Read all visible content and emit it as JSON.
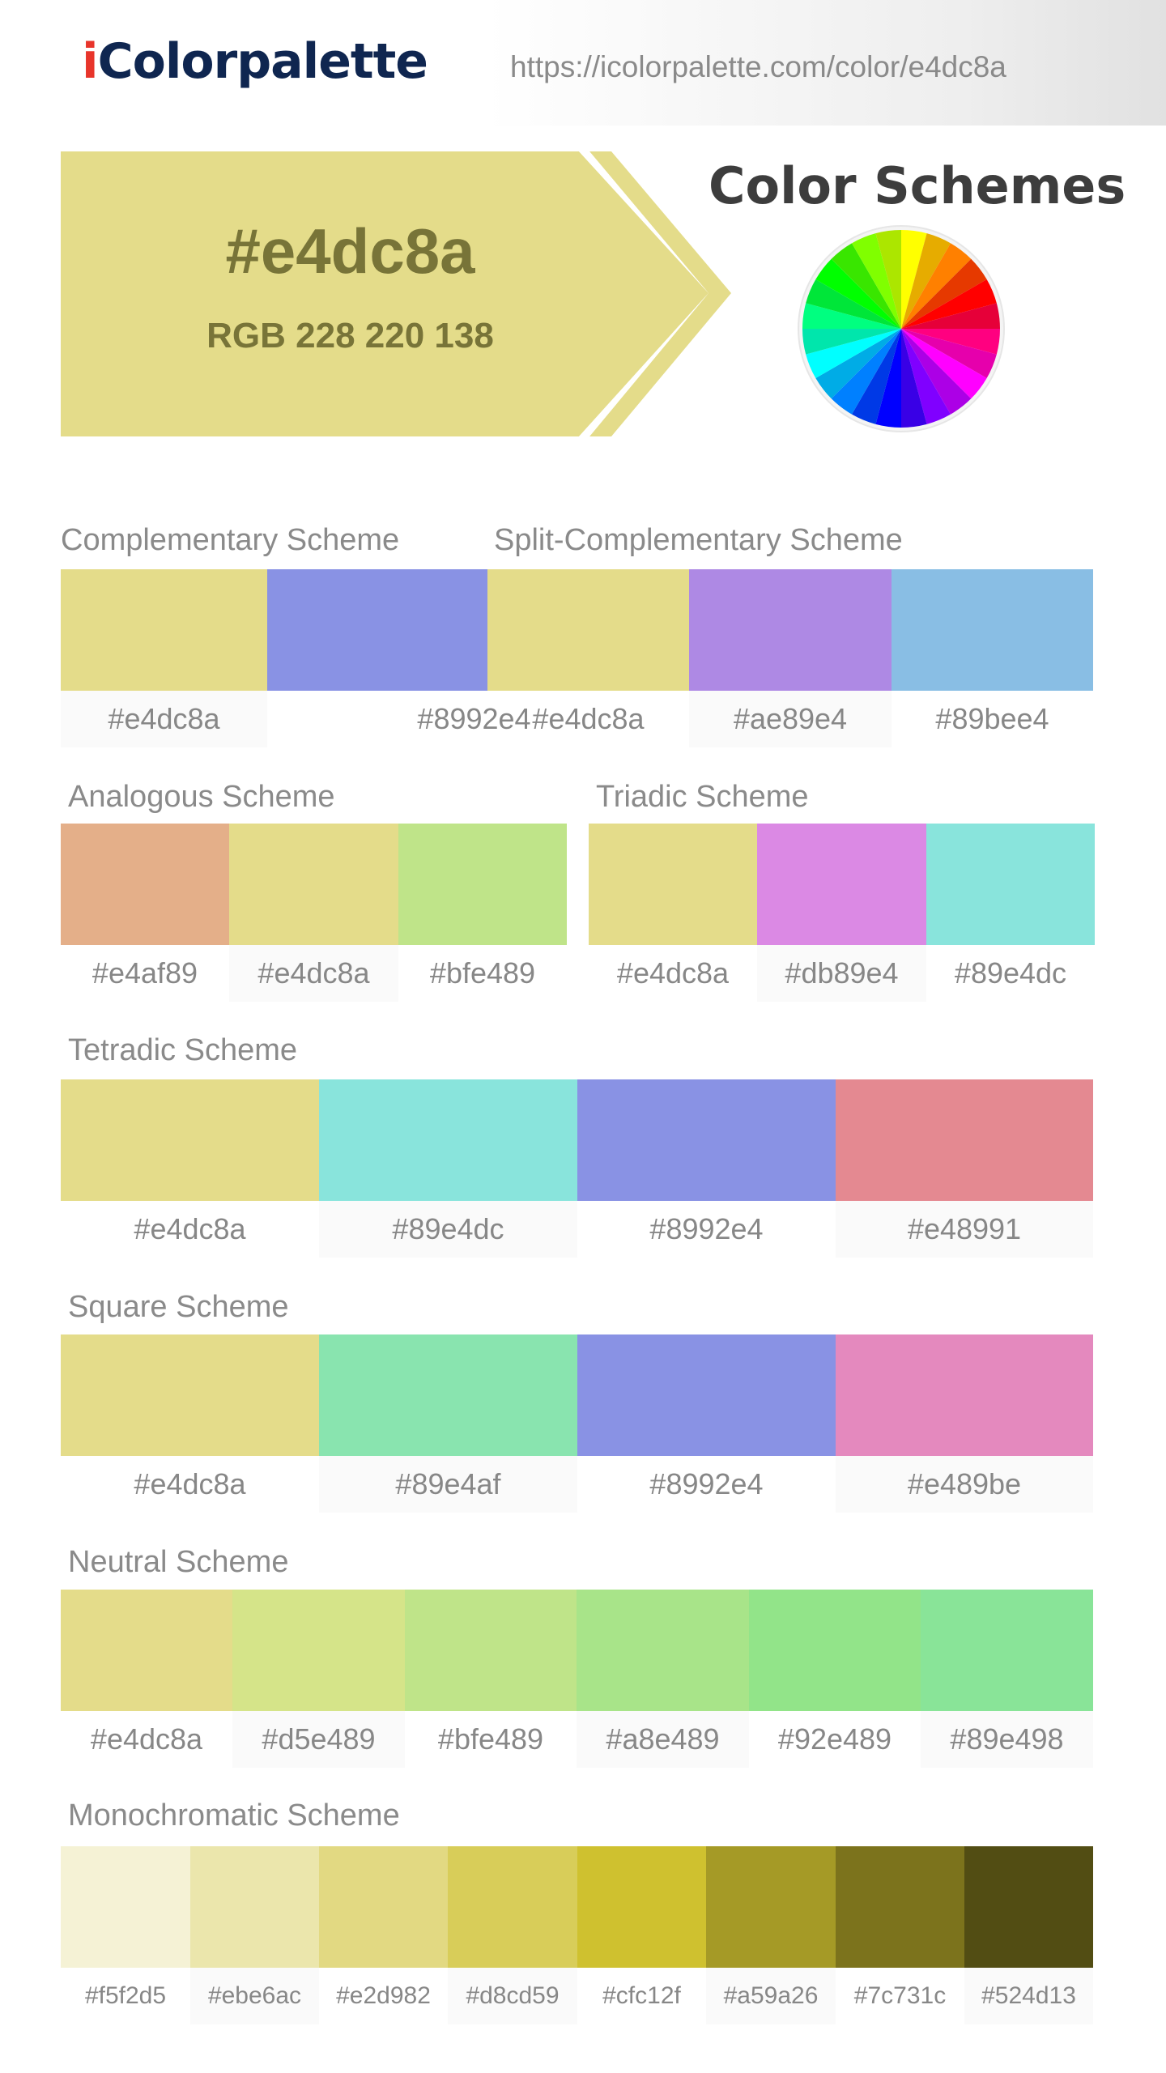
{
  "header": {
    "logo_i": "i",
    "logo_rest": "Colorpalette",
    "url": "https://icolorpalette.com/color/e4dc8a"
  },
  "hero": {
    "hex": "#e4dc8a",
    "rgb": "RGB 228 220 138",
    "color": "#e4dc8a",
    "text_color": "#787438"
  },
  "color_schemes_title": "Color Schemes",
  "color_wheel_icon": "color-wheel-icon",
  "schemes": {
    "complementary": {
      "title": "Complementary Scheme",
      "swatches": [
        {
          "hex": "#e4dc8a",
          "color": "#e4dc8a"
        },
        {
          "hex": "#8992e4",
          "color": "#8992e4"
        }
      ]
    },
    "split_complementary": {
      "title": "Split-Complementary Scheme",
      "swatches": [
        {
          "hex": "#e4dc8a",
          "color": "#e4dc8a"
        },
        {
          "hex": "#ae89e4",
          "color": "#ae89e4"
        },
        {
          "hex": "#89bee4",
          "color": "#89bee4"
        }
      ]
    },
    "analogous": {
      "title": "Analogous Scheme",
      "swatches": [
        {
          "hex": "#e4af89",
          "color": "#e4af89"
        },
        {
          "hex": "#e4dc8a",
          "color": "#e4dc8a"
        },
        {
          "hex": "#bfe489",
          "color": "#bfe489"
        }
      ]
    },
    "triadic": {
      "title": "Triadic Scheme",
      "swatches": [
        {
          "hex": "#e4dc8a",
          "color": "#e4dc8a"
        },
        {
          "hex": "#db89e4",
          "color": "#db89e4"
        },
        {
          "hex": "#89e4dc",
          "color": "#89e4dc"
        }
      ]
    },
    "tetradic": {
      "title": "Tetradic Scheme",
      "swatches": [
        {
          "hex": "#e4dc8a",
          "color": "#e4dc8a"
        },
        {
          "hex": "#89e4dc",
          "color": "#89e4dc"
        },
        {
          "hex": "#8992e4",
          "color": "#8992e4"
        },
        {
          "hex": "#e48991",
          "color": "#e48991"
        }
      ]
    },
    "square": {
      "title": "Square Scheme",
      "swatches": [
        {
          "hex": "#e4dc8a",
          "color": "#e4dc8a"
        },
        {
          "hex": "#89e4af",
          "color": "#89e4af"
        },
        {
          "hex": "#8992e4",
          "color": "#8992e4"
        },
        {
          "hex": "#e489be",
          "color": "#e489be"
        }
      ]
    },
    "neutral": {
      "title": "Neutral Scheme",
      "swatches": [
        {
          "hex": "#e4dc8a",
          "color": "#e4dc8a"
        },
        {
          "hex": "#d5e489",
          "color": "#d5e489"
        },
        {
          "hex": "#bfe489",
          "color": "#bfe489"
        },
        {
          "hex": "#a8e489",
          "color": "#a8e489"
        },
        {
          "hex": "#92e489",
          "color": "#92e489"
        },
        {
          "hex": "#89e498",
          "color": "#89e498"
        }
      ]
    },
    "monochromatic": {
      "title": "Monochromatic Scheme",
      "swatches": [
        {
          "hex": "#f5f2d5",
          "color": "#f5f2d5"
        },
        {
          "hex": "#ebe6ac",
          "color": "#ebe6ac"
        },
        {
          "hex": "#e2d982",
          "color": "#e2d982"
        },
        {
          "hex": "#d8cd59",
          "color": "#d8cd59"
        },
        {
          "hex": "#cfc12f",
          "color": "#cfc12f"
        },
        {
          "hex": "#a59a26",
          "color": "#a59a26"
        },
        {
          "hex": "#7c731c",
          "color": "#7c731c"
        },
        {
          "hex": "#524d13",
          "color": "#524d13"
        }
      ]
    }
  }
}
